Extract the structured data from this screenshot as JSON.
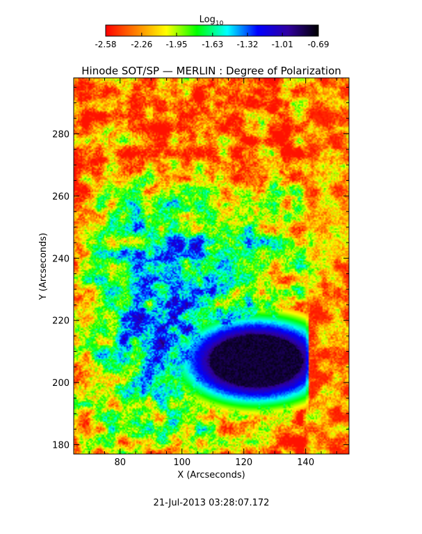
{
  "chart_data": {
    "type": "heatmap",
    "title": "Hinode SOT/SP — MERLIN : Degree of Polarization",
    "xlabel": "X (Arcseconds)",
    "ylabel": "Y (Arcseconds)",
    "xlim": [
      65,
      154
    ],
    "ylim": [
      177,
      298
    ],
    "x_ticks": [
      80,
      100,
      120,
      140
    ],
    "y_ticks": [
      180,
      200,
      220,
      240,
      260,
      280
    ],
    "colorbar": {
      "label_base": "Log",
      "label_sub": "10",
      "range": [
        -2.58,
        -0.69
      ],
      "ticks": [
        "-2.58",
        "-2.26",
        "-1.95",
        "-1.63",
        "-1.32",
        "-1.01",
        "-0.69"
      ],
      "colormap": [
        "#ff0000",
        "#ff8000",
        "#ffff00",
        "#00ff00",
        "#00ffff",
        "#0000ff",
        "#3000a0",
        "#000000"
      ]
    },
    "features": {
      "sunspot_center": [
        124,
        207
      ],
      "sunspot_umbra_log_value": -0.75,
      "background_log_value": -2.5,
      "scan_seam_x": 140
    },
    "timestamp": "21-Jul-2013 03:28:07.172"
  }
}
